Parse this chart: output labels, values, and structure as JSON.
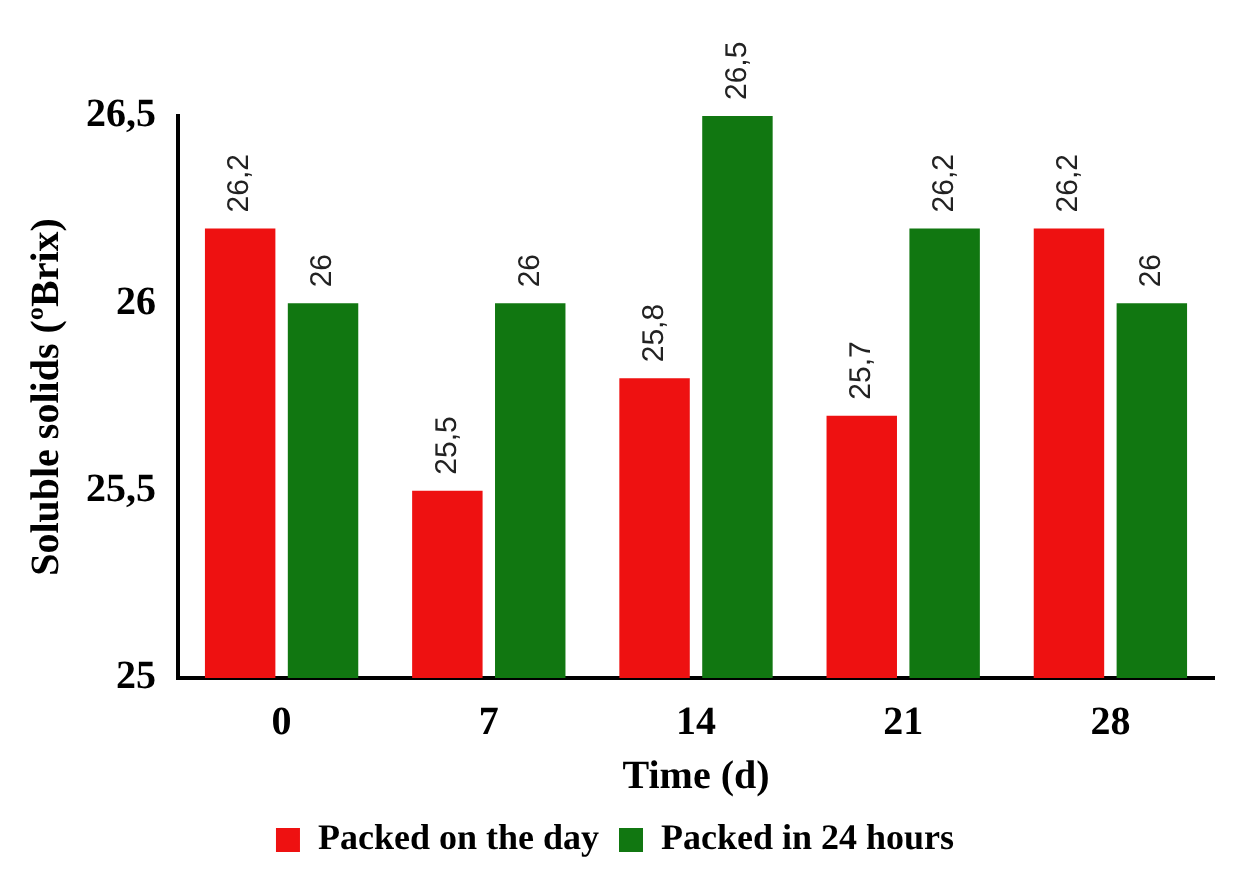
{
  "chart_data": {
    "type": "bar",
    "xlabel": "Time (d)",
    "ylabel": "Soluble solids (ºBrix)",
    "categories": [
      "0",
      "7",
      "14",
      "21",
      "28"
    ],
    "series": [
      {
        "name": "Packed on the day",
        "color": "#ee1111",
        "values": [
          26.2,
          25.5,
          25.8,
          25.7,
          26.2
        ],
        "value_labels": [
          "26,2",
          "25,5",
          "25,8",
          "25,7",
          "26,2"
        ]
      },
      {
        "name": "Packed in 24 hours",
        "color": "#117711",
        "values": [
          26,
          26,
          26.5,
          26.2,
          26
        ],
        "value_labels": [
          "26",
          "26",
          "26,5",
          "26,2",
          "26"
        ]
      }
    ],
    "ylim": [
      25,
      26.5
    ],
    "yticks": [
      25,
      {
        "value": 25.5,
        "label": "25,5"
      },
      26,
      {
        "value": 26.5,
        "label": "26,5"
      }
    ],
    "grid": false,
    "legend": "bottom"
  }
}
